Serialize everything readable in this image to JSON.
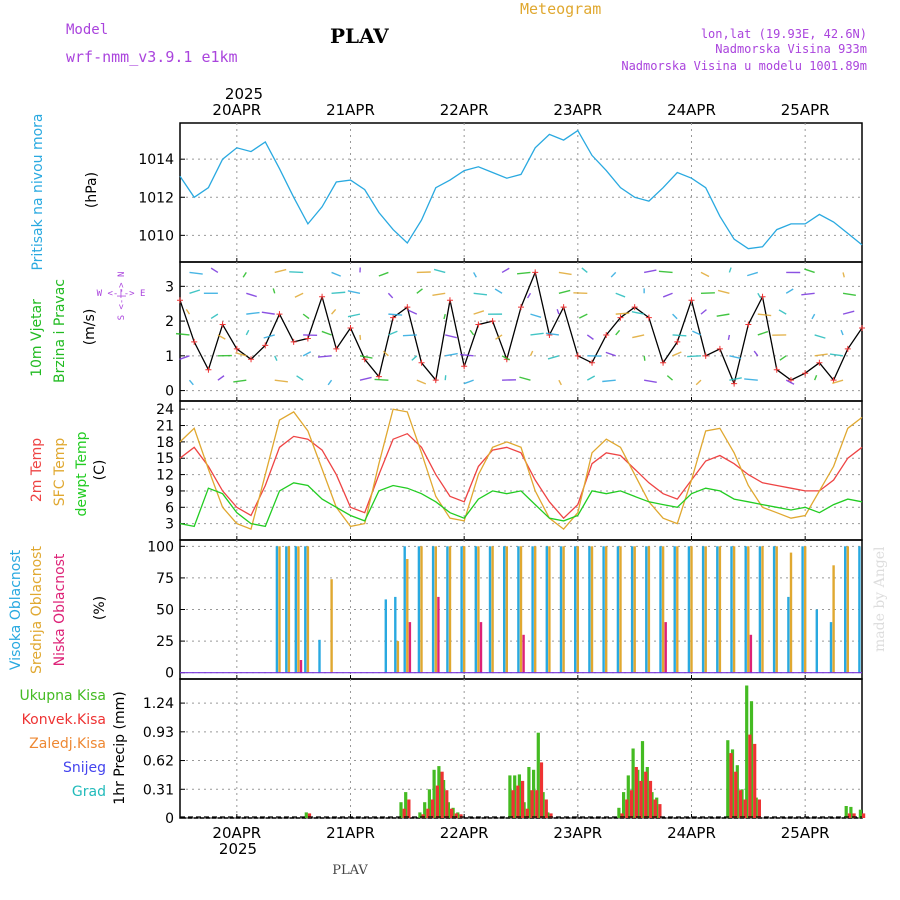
{
  "header": {
    "model_label": "Model",
    "model_name": "wrf-nmm_v3.9.1 e1km",
    "station": "PLAV",
    "product": "Meteogram",
    "coords": "lon,lat (19.93E, 42.6N)",
    "elevation": "Nadmorska Visina 933m",
    "model_elevation": "Nadmorska Visina u modelu 1001.89m",
    "footer_station": "PLAV",
    "credit": "made by Angel"
  },
  "colors": {
    "pressure": "#29a9e0",
    "wind_legend": "#22bb22",
    "t2m": "#ee4444",
    "sfc": "#e0a830",
    "dewpt": "#22cc22",
    "high_cloud": "#29a9e0",
    "mid_cloud": "#e0a830",
    "low_cloud": "#dd2277",
    "precip_total": "#44bb22",
    "precip_conv": "#ee3333",
    "precip_strat": "#ee8833",
    "snow": "#4444ee",
    "hail": "#22bbbb",
    "compass": "#aa44dd"
  },
  "time_axis": {
    "year": "2025",
    "dates": [
      "20APR",
      "21APR",
      "22APR",
      "23APR",
      "24APR",
      "25APR"
    ]
  },
  "panels": {
    "pressure": {
      "label": "Pritisak na nivou mora",
      "unit": "(hPa)"
    },
    "wind": {
      "label1": "10m Vjetar",
      "label2": "Brzina i Pravac",
      "unit": "(m/s)",
      "compass": "W <-|-> E",
      "compass_ns": "S <-|-> N"
    },
    "temp": {
      "label1": "2m Temp",
      "label2": "SFC Temp",
      "label3": "dewpt Temp",
      "unit": "(C)"
    },
    "cloud": {
      "label1": "Visoka Oblacnost",
      "label2": "Srednja Oblacnost",
      "label3": "Niska Oblacnost",
      "unit": "(%)"
    },
    "precip": {
      "unit": "1hr Precip (mm)",
      "legend": [
        "Ukupna Kisa",
        "Konvek.Kisa",
        "Zaledj.Kisa",
        "Snijeg",
        "Grad"
      ]
    }
  },
  "chart_data": [
    {
      "type": "line",
      "panel": "pressure",
      "ylabel": "(hPa)",
      "ylim": [
        1008.6,
        1015.9
      ],
      "yticks": [
        1010,
        1012,
        1014
      ],
      "x_hours": [
        0,
        3,
        6,
        9,
        12,
        15,
        18,
        21,
        24,
        27,
        30,
        33,
        36,
        39,
        42,
        45,
        48,
        51,
        54,
        57,
        60,
        63,
        66,
        69,
        72,
        75,
        78,
        81,
        84,
        87,
        90,
        93,
        96,
        99,
        102,
        105,
        108,
        111,
        114,
        117,
        120,
        123,
        126,
        129,
        132,
        135,
        138,
        141,
        144
      ],
      "series": [
        {
          "values": [
            1013.1,
            1012.0,
            1012.5,
            1014.0,
            1014.6,
            1014.4,
            1014.9,
            1013.5,
            1012.0,
            1010.6,
            1011.5,
            1012.8,
            1012.9,
            1012.4,
            1011.2,
            1010.3,
            1009.6,
            1010.8,
            1012.5,
            1012.9,
            1013.4,
            1013.6,
            1013.3,
            1013.0,
            1013.2,
            1014.6,
            1015.3,
            1015.0,
            1015.5,
            1014.2,
            1013.4,
            1012.5,
            1012.0,
            1011.8,
            1012.5,
            1013.3,
            1013.0,
            1012.5,
            1011.0,
            1009.8,
            1009.3,
            1009.4,
            1010.3,
            1010.6,
            1010.6,
            1011.1,
            1010.7,
            1010.1,
            1009.5
          ]
        }
      ]
    },
    {
      "type": "line",
      "panel": "wind",
      "ylabel": "(m/s)",
      "ylim": [
        -0.3,
        3.7
      ],
      "yticks": [
        0,
        1,
        2,
        3
      ],
      "x_hours": [
        0,
        3,
        6,
        9,
        12,
        15,
        18,
        21,
        24,
        27,
        30,
        33,
        36,
        39,
        42,
        45,
        48,
        51,
        54,
        57,
        60,
        63,
        66,
        69,
        72,
        75,
        78,
        81,
        84,
        87,
        90,
        93,
        96,
        99,
        102,
        105,
        108,
        111,
        114,
        117,
        120,
        123,
        126,
        129,
        132,
        135,
        138,
        141,
        144
      ],
      "series": [
        {
          "values": [
            2.6,
            1.4,
            0.6,
            1.9,
            1.2,
            0.9,
            1.3,
            2.2,
            1.4,
            1.5,
            2.7,
            1.2,
            1.8,
            0.9,
            0.4,
            2.1,
            2.4,
            0.8,
            0.3,
            2.6,
            0.7,
            1.9,
            2.0,
            0.9,
            2.4,
            3.4,
            1.6,
            2.4,
            1.0,
            0.8,
            1.6,
            2.1,
            2.4,
            2.1,
            0.8,
            1.4,
            2.6,
            1.0,
            1.2,
            0.2,
            1.9,
            2.7,
            0.6,
            0.3,
            0.5,
            0.8,
            0.3,
            1.2,
            1.8
          ]
        }
      ]
    },
    {
      "type": "line",
      "panel": "temp",
      "ylabel": "(C)",
      "ylim": [
        0,
        25.5
      ],
      "yticks": [
        3,
        6,
        9,
        12,
        15,
        18,
        21,
        24
      ],
      "x_hours": [
        0,
        3,
        6,
        9,
        12,
        15,
        18,
        21,
        24,
        27,
        30,
        33,
        36,
        39,
        42,
        45,
        48,
        51,
        54,
        57,
        60,
        63,
        66,
        69,
        72,
        75,
        78,
        81,
        84,
        87,
        90,
        93,
        96,
        99,
        102,
        105,
        108,
        111,
        114,
        117,
        120,
        123,
        126,
        129,
        132,
        135,
        138,
        141,
        144
      ],
      "series": [
        {
          "name": "2m Temp",
          "values": [
            15.0,
            17.0,
            13.5,
            9.0,
            6.0,
            4.5,
            10.0,
            17.0,
            19.0,
            18.5,
            16.5,
            12.0,
            6.0,
            5.0,
            12.0,
            18.5,
            19.5,
            17.0,
            12.0,
            8.0,
            7.0,
            13.5,
            16.5,
            17.0,
            16.0,
            11.0,
            7.0,
            4.0,
            6.5,
            14.0,
            16.0,
            15.5,
            13.0,
            10.5,
            8.5,
            7.5,
            11.0,
            14.5,
            15.5,
            14.0,
            12.0,
            10.5,
            10.0,
            9.5,
            9.0,
            9.0,
            11.0,
            15.0,
            17.0
          ]
        },
        {
          "name": "SFC Temp",
          "values": [
            18.0,
            20.5,
            13.0,
            6.0,
            3.0,
            2.0,
            12.0,
            22.0,
            23.5,
            20.0,
            13.0,
            6.0,
            2.5,
            3.0,
            14.0,
            24.0,
            23.5,
            16.0,
            8.0,
            4.0,
            3.5,
            12.0,
            17.0,
            18.0,
            17.0,
            9.0,
            4.0,
            2.0,
            5.0,
            16.0,
            18.5,
            17.0,
            12.0,
            7.0,
            4.0,
            3.0,
            11.0,
            20.0,
            20.5,
            16.0,
            10.0,
            6.0,
            5.0,
            4.0,
            4.5,
            9.0,
            13.5,
            20.5,
            22.5
          ]
        },
        {
          "name": "dewpt Temp",
          "values": [
            3.0,
            2.5,
            9.5,
            8.5,
            5.0,
            3.0,
            2.5,
            9.0,
            10.5,
            10.0,
            7.5,
            6.0,
            4.5,
            3.5,
            9.0,
            10.0,
            9.5,
            8.5,
            7.0,
            5.0,
            4.0,
            7.5,
            9.0,
            8.5,
            9.0,
            6.5,
            4.0,
            3.5,
            4.5,
            9.0,
            8.5,
            9.0,
            8.0,
            7.0,
            6.5,
            6.0,
            8.5,
            9.5,
            9.0,
            7.5,
            7.0,
            6.5,
            6.0,
            5.5,
            6.0,
            5.0,
            6.5,
            7.5,
            7.0
          ]
        }
      ]
    },
    {
      "type": "bar",
      "panel": "cloud",
      "ylabel": "(%)",
      "ylim": [
        -5,
        105
      ],
      "yticks": [
        0,
        25,
        50,
        75,
        100
      ],
      "x_hours": [
        21,
        23,
        25,
        27,
        30,
        32,
        44,
        46,
        48,
        51,
        54,
        57,
        60,
        63,
        66,
        69,
        72,
        75,
        78,
        81,
        84,
        87,
        90,
        93,
        96,
        99,
        102,
        105,
        108,
        111,
        114,
        117,
        120,
        123,
        126,
        129,
        132,
        135,
        138,
        141,
        144
      ],
      "series": [
        {
          "name": "Visoka Oblacnost",
          "values": [
            100,
            100,
            100,
            100,
            26,
            0,
            58,
            60,
            100,
            100,
            100,
            100,
            100,
            100,
            100,
            100,
            100,
            100,
            100,
            100,
            100,
            100,
            100,
            100,
            100,
            100,
            100,
            100,
            100,
            100,
            100,
            100,
            100,
            100,
            100,
            60,
            100,
            50,
            40,
            100,
            100
          ]
        },
        {
          "name": "Srednja Oblacnost",
          "values": [
            100,
            100,
            100,
            100,
            0,
            74,
            0,
            25,
            90,
            100,
            100,
            100,
            100,
            100,
            100,
            100,
            100,
            100,
            100,
            100,
            100,
            100,
            100,
            100,
            100,
            100,
            100,
            100,
            100,
            100,
            100,
            100,
            100,
            100,
            100,
            95,
            100,
            0,
            85,
            100,
            0
          ]
        },
        {
          "name": "Niska Oblacnost",
          "values": [
            0,
            0,
            10,
            0,
            0,
            0,
            0,
            0,
            40,
            0,
            60,
            0,
            0,
            40,
            0,
            0,
            30,
            0,
            0,
            0,
            0,
            0,
            0,
            0,
            0,
            0,
            40,
            0,
            0,
            0,
            0,
            0,
            30,
            0,
            0,
            0,
            0,
            0,
            0,
            0,
            0
          ]
        }
      ]
    },
    {
      "type": "bar",
      "panel": "precip",
      "ylabel": "1hr Precip (mm)",
      "ylim": [
        0,
        1.5
      ],
      "yticks": [
        0,
        0.31,
        0.62,
        0.93,
        1.24
      ],
      "x_hours": [
        27,
        47,
        48,
        51,
        52,
        53,
        54,
        55,
        56,
        57,
        58,
        59,
        60,
        70,
        71,
        72,
        73,
        74,
        75,
        76,
        77,
        78,
        79,
        93,
        94,
        95,
        96,
        97,
        98,
        99,
        100,
        101,
        116,
        117,
        118,
        119,
        120,
        121,
        122,
        123,
        141,
        142,
        144
      ],
      "series": [
        {
          "name": "Ukupna Kisa",
          "values": [
            0.06,
            0.17,
            0.28,
            0.06,
            0.17,
            0.31,
            0.52,
            0.56,
            0.41,
            0.17,
            0.11,
            0.06,
            0.0,
            0.46,
            0.46,
            0.47,
            0.17,
            0.55,
            0.52,
            0.92,
            0.28,
            0.06,
            0.0,
            0.11,
            0.28,
            0.46,
            0.75,
            0.52,
            0.83,
            0.55,
            0.28,
            0.22,
            0.84,
            0.74,
            0.57,
            0.31,
            1.43,
            1.26,
            0.22,
            0.0,
            0.13,
            0.12,
            0.09
          ]
        },
        {
          "name": "Konvek.Kisa",
          "values": [
            0.05,
            0.1,
            0.2,
            0.04,
            0.1,
            0.2,
            0.35,
            0.5,
            0.3,
            0.1,
            0.05,
            0.04,
            0.0,
            0.3,
            0.35,
            0.4,
            0.1,
            0.3,
            0.3,
            0.6,
            0.2,
            0.05,
            0.0,
            0.05,
            0.2,
            0.3,
            0.55,
            0.4,
            0.5,
            0.4,
            0.2,
            0.15,
            0.7,
            0.5,
            0.3,
            0.2,
            0.9,
            0.8,
            0.2,
            0.0,
            0.05,
            0.05,
            0.05
          ]
        }
      ]
    }
  ]
}
